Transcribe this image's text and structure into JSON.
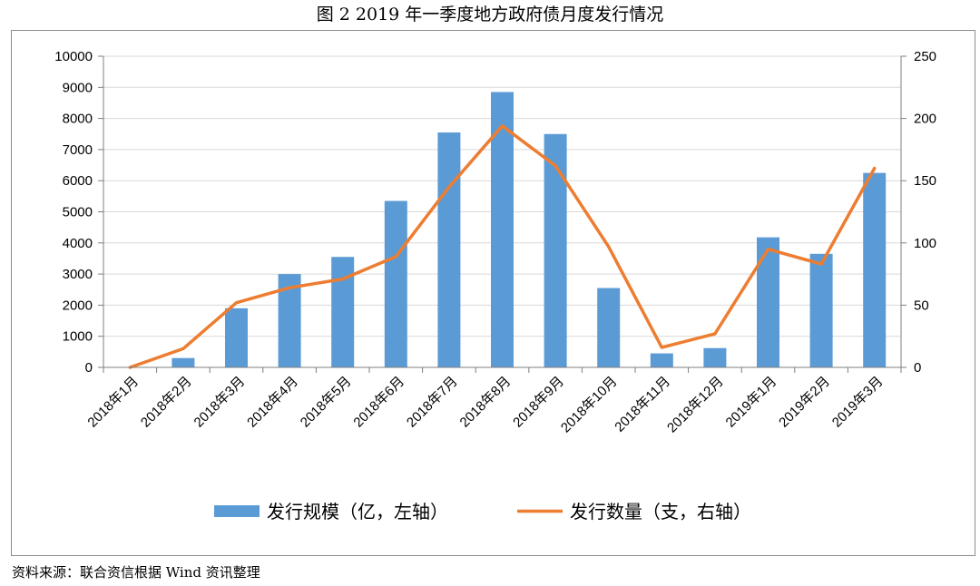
{
  "title": "图 2    2019 年一季度地方政府债月度发行情况",
  "source": "资料来源：联合资信根据 Wind 资讯整理",
  "chart_data": {
    "type": "bar+line",
    "categories": [
      "2018年1月",
      "2018年2月",
      "2018年3月",
      "2018年4月",
      "2018年5月",
      "2018年6月",
      "2018年7月",
      "2018年8月",
      "2018年9月",
      "2018年10月",
      "2018年11月",
      "2018年12月",
      "2019年1月",
      "2019年2月",
      "2019年3月"
    ],
    "series": [
      {
        "name": "发行规模（亿，左轴）",
        "type": "bar",
        "axis": "left",
        "color": "#5b9bd5",
        "values": [
          0,
          300,
          1900,
          3000,
          3550,
          5350,
          7550,
          8850,
          7500,
          2550,
          450,
          620,
          4180,
          3650,
          6250
        ]
      },
      {
        "name": "发行数量（支，右轴）",
        "type": "line",
        "axis": "right",
        "color": "#ed7d31",
        "values": [
          0,
          15,
          52,
          64,
          71,
          89,
          145,
          194,
          162,
          97,
          16,
          27,
          95,
          83,
          160
        ]
      }
    ],
    "left_axis": {
      "ylim": [
        0,
        10000
      ],
      "ticks": [
        "0",
        "1000",
        "2000",
        "3000",
        "4000",
        "5000",
        "6000",
        "7000",
        "8000",
        "9000",
        "10000"
      ]
    },
    "right_axis": {
      "ylim": [
        0,
        250
      ],
      "ticks": [
        "0",
        "50",
        "100",
        "150",
        "200",
        "250"
      ]
    },
    "grid": true,
    "legend_position": "bottom"
  }
}
